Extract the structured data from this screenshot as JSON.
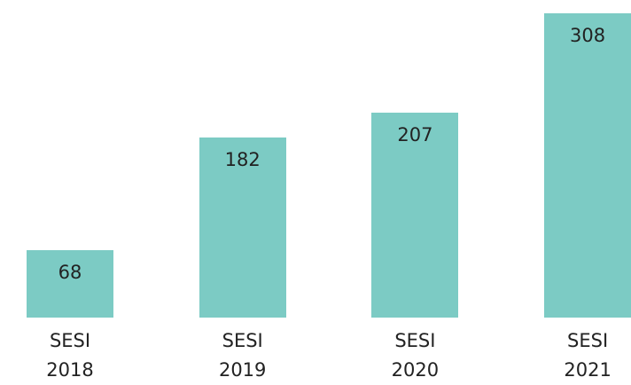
{
  "chart_data": {
    "type": "bar",
    "categories": [
      "SESI 2018",
      "SESI 2019",
      "SESI 2020",
      "SESI 2021"
    ],
    "values": [
      68,
      182,
      207,
      308
    ],
    "color": "#7ccbc4",
    "ylim": [
      0,
      308
    ]
  }
}
